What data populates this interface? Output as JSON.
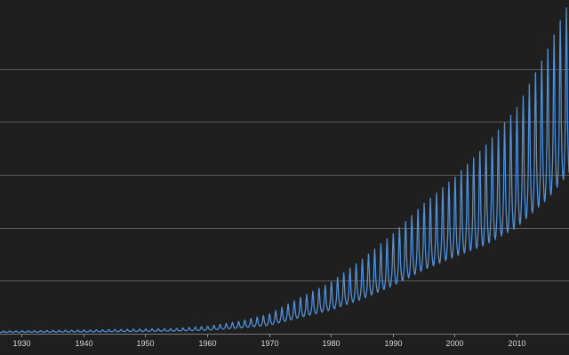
{
  "chart_data": {
    "type": "line",
    "title": "",
    "xlabel": "",
    "ylabel": "",
    "x_range": [
      1926.5,
      2018.5
    ],
    "y_range": [
      0,
      6.3
    ],
    "y_gridlines": [
      1,
      2,
      3,
      4,
      5
    ],
    "x_ticks": [
      "1930",
      "1940",
      "1950",
      "1960",
      "1970",
      "1980",
      "1990",
      "2000",
      "2010"
    ],
    "grid": "horizontal",
    "legend": "none",
    "series": [
      {
        "color": "#4f8fd6",
        "frequency": "monthly",
        "trend_anchors": {
          "years": [
            1926,
            1940,
            1955,
            1960,
            1965,
            1970,
            1975,
            1980,
            1985,
            1990,
            1995,
            2000,
            2005,
            2010,
            2015,
            2018
          ],
          "values": [
            0.03,
            0.04,
            0.06,
            0.08,
            0.13,
            0.2,
            0.38,
            0.55,
            0.8,
            1.1,
            1.45,
            1.75,
            2.05,
            2.45,
            3.1,
            3.6
          ]
        },
        "seasonal_amplitude": {
          "years": [
            1926,
            1940,
            1955,
            1960,
            1965,
            1970,
            1975,
            1980,
            1985,
            1990,
            1995,
            2000,
            2005,
            2010,
            2015,
            2018
          ],
          "values": [
            0.02,
            0.03,
            0.04,
            0.06,
            0.1,
            0.17,
            0.3,
            0.42,
            0.6,
            0.78,
            1.0,
            1.2,
            1.5,
            1.8,
            2.25,
            2.55
          ]
        },
        "peak_month": 1
      }
    ]
  }
}
